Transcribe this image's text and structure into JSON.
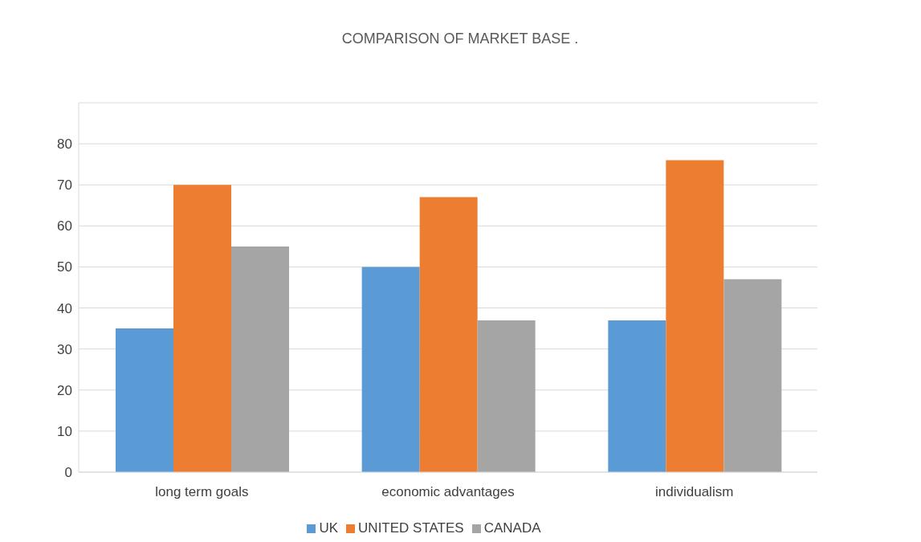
{
  "chart_data": {
    "type": "bar",
    "title": "COMPARISON OF MARKET BASE .",
    "categories": [
      "long term goals",
      "economic advantages",
      "individualism"
    ],
    "series": [
      {
        "name": "UK",
        "color": "#5b9bd5",
        "values": [
          35,
          50,
          37
        ]
      },
      {
        "name": "UNITED STATES",
        "color": "#ed7d31",
        "values": [
          70,
          67,
          76
        ]
      },
      {
        "name": "CANADA",
        "color": "#a5a5a5",
        "values": [
          55,
          37,
          47
        ]
      }
    ],
    "ylim": [
      0,
      90
    ],
    "yticks": [
      0,
      10,
      20,
      30,
      40,
      50,
      60,
      70,
      80
    ],
    "grid": "y",
    "legend": "bottom"
  }
}
